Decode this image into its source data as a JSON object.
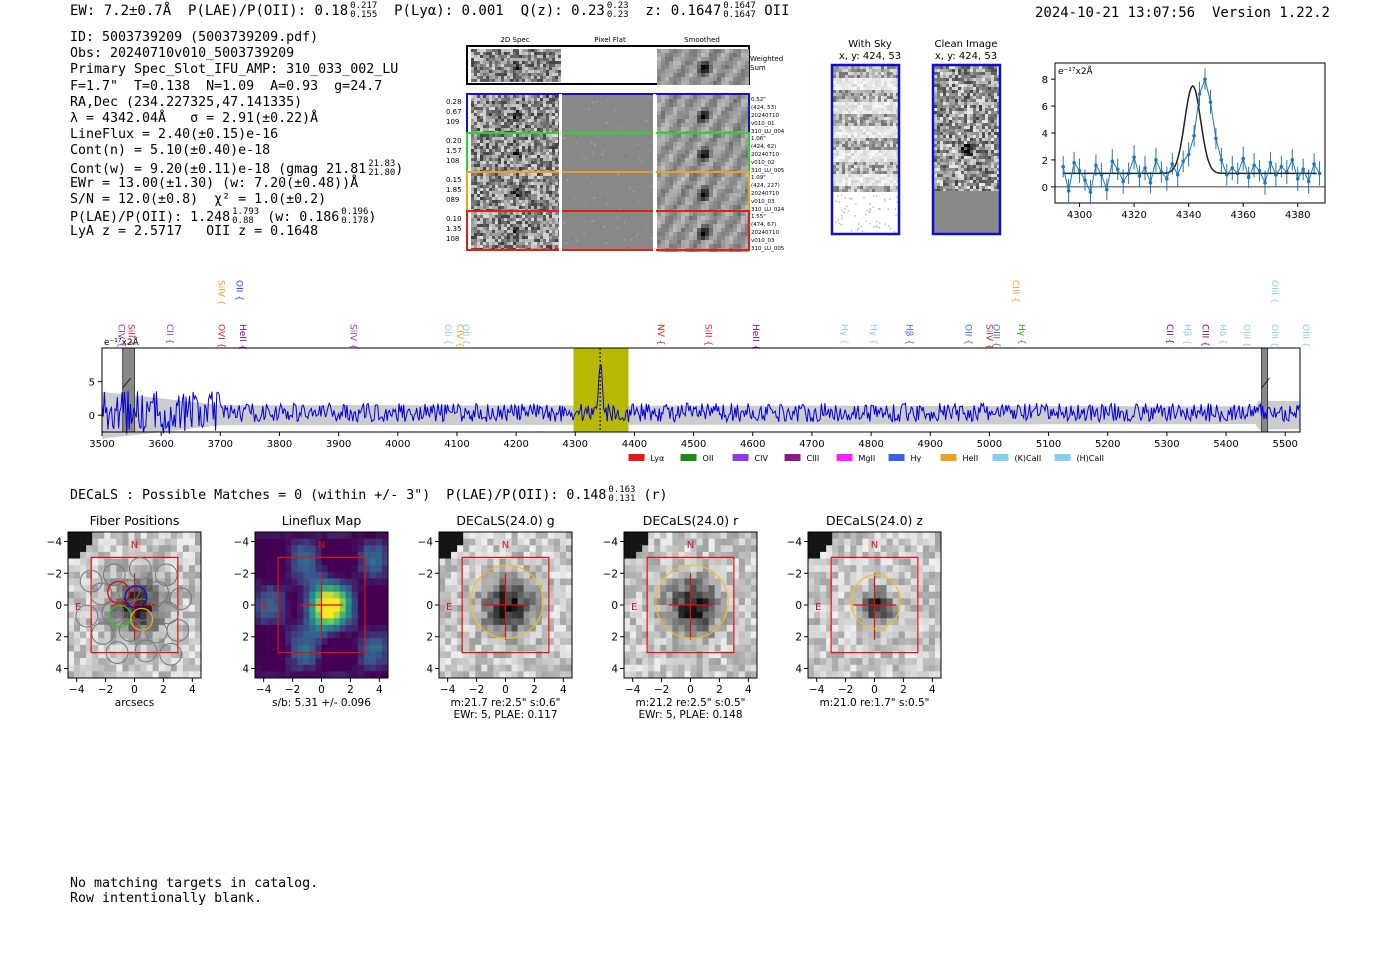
{
  "header": {
    "ew": "EW: 7.2±0.7Å",
    "plae_label": "P(LAE)/P(OII): 0.18",
    "plae_hi": "0.217",
    "plae_lo": "0.155",
    "plya": "P(Lyα): 0.001",
    "qz_label": "Q(z): 0.23",
    "qz_hi": "0.23",
    "qz_lo": "0.23",
    "z_label": "z: 0.1647",
    "z_hi": "0.1647",
    "z_lo": "0.1647",
    "z_line": "OII",
    "timestamp": "2024-10-21 13:07:56",
    "version": "Version 1.22.2"
  },
  "info": {
    "id": "ID: 5003739209 (5003739209.pdf)",
    "obs": "Obs: 20240710v010_5003739209",
    "primary": "Primary Spec_Slot_IFU_AMP: 310_033_002_LU",
    "fwhm": "F=1.7\"  T=0.138  N=1.09  A=0.93  g=24.7",
    "radec": "RA,Dec (234.227325,47.141335)",
    "lambda": "λ = 4342.04Å   σ = 2.91(±0.22)Å",
    "lineflux": "LineFlux = 2.40(±0.15)e-16",
    "contn": "Cont(n) = 5.10(±0.40)e-18",
    "contw": "Cont(w) = 9.20(±0.11)e-18 (gmag 21.81",
    "contw_hi": "21.83",
    "contw_lo": "21.80",
    "ewr": "EWr = 13.00(±1.30) (w: 7.20(±0.48))Å",
    "sn": "S/N = 12.0(±0.8)  χ² = 1.0(±0.2)",
    "plae": "P(LAE)/P(OII): 1.248",
    "plae_hi": "1.793",
    "plae_lo": "0.88",
    "plae_w": "(w: 0.186",
    "plae_w_hi": "0.196",
    "plae_w_lo": "0.178",
    "lya_z": "LyA z = 2.5717   OII z = 0.1648"
  },
  "cutouts": {
    "headers": [
      "2D Spec",
      "Pixel Flat",
      "Smoothed"
    ],
    "weighted_sum": [
      "Weighted",
      "Sum"
    ],
    "rows": [
      {
        "left": [
          "0.28",
          "0.67",
          "109"
        ],
        "color": "#1010d0",
        "right": [
          "0.52\"",
          "(424, 53)",
          "20240710",
          "v010_01",
          "310_LU_004"
        ]
      },
      {
        "left": [
          "0.20",
          "1.57",
          "108"
        ],
        "color": "#30d030",
        "right": [
          "1.06\"",
          "(424, 62)",
          "20240710",
          "v010_02",
          "310_LU_005"
        ]
      },
      {
        "left": [
          "0.15",
          "1.85",
          "089"
        ],
        "color": "#f0a020",
        "right": [
          "1.09\"",
          "(424, 227)",
          "20240710",
          "v010_03",
          "310_LU_024"
        ]
      },
      {
        "left": [
          "0.10",
          "1.35",
          "108"
        ],
        "color": "#e02010",
        "right": [
          "1.55\"",
          "(474, 67)",
          "20240710",
          "v010_03",
          "310_LU_005"
        ]
      }
    ],
    "with_sky_title": "With Sky",
    "with_sky_coords": "x, y: 424, 53",
    "clean_title": "Clean Image",
    "clean_coords": "x, y: 424, 53"
  },
  "zoom_chart": {
    "type": "scatter",
    "ylabel": "e⁻¹⁷x2Å",
    "xlim": [
      4291,
      4390
    ],
    "ylim": [
      -1.2,
      9.2
    ],
    "xticks": [
      4300,
      4320,
      4340,
      4360,
      4380
    ],
    "yticks": [
      0,
      2,
      4,
      6,
      8
    ],
    "x": [
      4294,
      4296,
      4298,
      4300,
      4302,
      4304,
      4306,
      4308,
      4310,
      4312,
      4314,
      4316,
      4318,
      4320,
      4322,
      4324,
      4326,
      4328,
      4330,
      4332,
      4334,
      4336,
      4338,
      4340,
      4342,
      4344,
      4346,
      4348,
      4350,
      4352,
      4354,
      4356,
      4358,
      4360,
      4362,
      4364,
      4366,
      4368,
      4370,
      4372,
      4374,
      4376,
      4378,
      4380,
      4382,
      4384,
      4386,
      4388
    ],
    "y": [
      1.5,
      -0.3,
      1.8,
      1.2,
      0.5,
      -0.4,
      1.6,
      0.9,
      -0.2,
      1.9,
      1.3,
      0.4,
      1.0,
      2.2,
      0.8,
      1.4,
      0.3,
      2.0,
      1.1,
      0.6,
      1.7,
      0.9,
      1.9,
      2.4,
      3.8,
      6.9,
      8.0,
      6.3,
      3.6,
      2.0,
      0.9,
      1.4,
      1.0,
      2.1,
      0.7,
      1.6,
      1.2,
      0.3,
      1.8,
      0.9,
      1.5,
      1.1,
      2.0,
      0.6,
      1.3,
      0.4,
      1.7,
      1.0
    ],
    "err": [
      0.8,
      0.9,
      0.8,
      0.9,
      0.8,
      0.9,
      0.8,
      0.9,
      0.8,
      0.9,
      0.8,
      0.9,
      0.8,
      0.9,
      0.8,
      0.9,
      0.8,
      0.9,
      0.8,
      0.9,
      0.8,
      0.9,
      0.8,
      0.9,
      0.8,
      0.9,
      0.8,
      0.9,
      0.8,
      0.9,
      0.8,
      0.9,
      0.8,
      0.9,
      0.8,
      0.9,
      0.8,
      0.9,
      0.8,
      0.9,
      0.8,
      0.9,
      0.8,
      0.9,
      0.8,
      0.9,
      0.8,
      0.9
    ],
    "fit": {
      "center": 4341.5,
      "sigma": 2.91,
      "amp": 6.5,
      "base": 1.0
    }
  },
  "spectrum_chart": {
    "type": "line",
    "ylabel": "e⁻¹⁷x2Å",
    "xlim": [
      3500,
      5525
    ],
    "ylim": [
      -2.5,
      10
    ],
    "xticks": [
      3500,
      3600,
      3700,
      3800,
      3900,
      4000,
      4100,
      4200,
      4300,
      4400,
      4500,
      4600,
      4700,
      4800,
      4900,
      5000,
      5100,
      5200,
      5300,
      5400,
      5500
    ],
    "yticks": [
      0,
      5
    ],
    "highlight": [
      4297,
      4390
    ],
    "peak": 4342,
    "masked": [
      [
        3535,
        3555
      ],
      [
        5460,
        5470
      ]
    ],
    "line_labels": [
      {
        "text": "CIV",
        "x": 3528,
        "color": "#8a2be2",
        "row": 2
      },
      {
        "text": "SiII",
        "x": 3545,
        "color": "#e02020",
        "row": 2
      },
      {
        "text": "CII",
        "x": 3610,
        "color": "#9932cc",
        "row": 2
      },
      {
        "text": "SiIV",
        "x": 3697,
        "color": "#f0a020",
        "row": 0
      },
      {
        "text": "OVI",
        "x": 3697,
        "color": "#e02020",
        "row": 2
      },
      {
        "text": "OII",
        "x": 3727,
        "color": "#2040ff",
        "row": 0
      },
      {
        "text": "HeII",
        "x": 3733,
        "color": "#800080",
        "row": 2
      },
      {
        "text": "SiIV",
        "x": 3920,
        "color": "#9932cc",
        "row": 2
      },
      {
        "text": "OII",
        "x": 4080,
        "color": "#87ceeb",
        "row": 2
      },
      {
        "text": "CIV",
        "x": 4100,
        "color": "#f0a020",
        "row": 2
      },
      {
        "text": "OII",
        "x": 4110,
        "color": "#87ceeb",
        "row": 2
      },
      {
        "text": "NV",
        "x": 4440,
        "color": "#e02020",
        "row": 2
      },
      {
        "text": "SiII",
        "x": 4520,
        "color": "#e02020",
        "row": 2
      },
      {
        "text": "HeII",
        "x": 4600,
        "color": "#800080",
        "row": 2
      },
      {
        "text": "Hγ",
        "x": 4750,
        "color": "#87ceeb",
        "row": 2
      },
      {
        "text": "Hγ",
        "x": 4800,
        "color": "#87ceeb",
        "row": 2
      },
      {
        "text": "Hβ",
        "x": 4860,
        "color": "#4169e1",
        "row": 2
      },
      {
        "text": "OII",
        "x": 4960,
        "color": "#4169e1",
        "row": 2
      },
      {
        "text": "SiIV",
        "x": 4995,
        "color": "#e02020",
        "row": 2
      },
      {
        "text": "OIII",
        "x": 5007,
        "color": "#4169e1",
        "row": 2
      },
      {
        "text": "CIII",
        "x": 5040,
        "color": "#f0a020",
        "row": 0
      },
      {
        "text": "Hγ",
        "x": 5050,
        "color": "#20a020",
        "row": 2
      },
      {
        "text": "CII",
        "x": 5300,
        "color": "#800080",
        "row": 2
      },
      {
        "text": "Hβ",
        "x": 5330,
        "color": "#87ceeb",
        "row": 2
      },
      {
        "text": "CIII",
        "x": 5360,
        "color": "#800080",
        "row": 2
      },
      {
        "text": "Hδ",
        "x": 5390,
        "color": "#87ceeb",
        "row": 2
      },
      {
        "text": "OIII",
        "x": 5430,
        "color": "#87ceeb",
        "row": 2
      },
      {
        "text": "OIII",
        "x": 5478,
        "color": "#87ceeb",
        "row": 0
      },
      {
        "text": "OIII",
        "x": 5478,
        "color": "#87ceeb",
        "row": 2
      },
      {
        "text": "OIII",
        "x": 5530,
        "color": "#87ceeb",
        "row": 2
      }
    ],
    "legend": [
      {
        "label": "Lyα",
        "color": "#e8141c"
      },
      {
        "label": "OII",
        "color": "#1a8a1a"
      },
      {
        "label": "CIV",
        "color": "#8a3ee8"
      },
      {
        "label": "CIII",
        "color": "#8a1a8a"
      },
      {
        "label": "MgII",
        "color": "#ff20ff"
      },
      {
        "label": "Hγ",
        "color": "#3a60e8"
      },
      {
        "label": "HeII",
        "color": "#f0a020"
      },
      {
        "label": "(K)CaII",
        "color": "#87ceeb"
      },
      {
        "label": "(H)CaII",
        "color": "#87ceeb"
      }
    ]
  },
  "decals": {
    "line": "DECaLS : Possible Matches = 0 (within +/- 3\")  P(LAE)/P(OII): 0.148",
    "hi": "0.163",
    "lo": "0.131",
    "band": "(r)",
    "panels": [
      {
        "title": "Fiber Positions",
        "xlabel": "arcsecs",
        "sub1": "",
        "sub2": ""
      },
      {
        "title": "Lineflux Map",
        "xlabel": "s/b: 5.31 +/- 0.096",
        "sub1": "",
        "sub2": ""
      },
      {
        "title": "DECaLS(24.0) g",
        "xlabel": "m:21.7  re:2.5\"  s:0.6\"",
        "sub1": "EWr: 5, PLAE: 0.117",
        "sub2": ""
      },
      {
        "title": "DECaLS(24.0) r",
        "xlabel": "m:21.2  re:2.5\"  s:0.5\"",
        "sub1": "EWr: 5, PLAE: 0.148",
        "sub2": ""
      },
      {
        "title": "DECaLS(24.0) z",
        "xlabel": "m:21.0  re:1.7\"  s:0.5\"",
        "sub1": "",
        "sub2": ""
      }
    ],
    "ticks": [
      "−4",
      "−2",
      "0",
      "2",
      "4"
    ],
    "yticks": [
      "4",
      "2",
      "0",
      "−2",
      "−4"
    ],
    "north": "N",
    "east": "E"
  },
  "footer": {
    "line1": "No matching targets in catalog.",
    "line2": "Row intentionally blank."
  }
}
